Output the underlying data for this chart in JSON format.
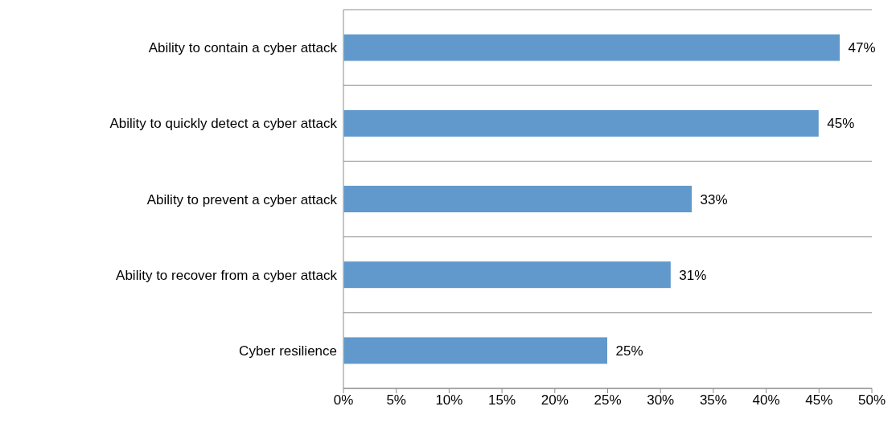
{
  "chart_data": {
    "type": "bar",
    "orientation": "horizontal",
    "categories": [
      "Ability to contain a cyber attack",
      "Ability to quickly detect a cyber attack",
      "Ability to prevent a cyber attack",
      "Ability to recover from a cyber attack",
      "Cyber resilience"
    ],
    "values": [
      47,
      45,
      33,
      31,
      25
    ],
    "value_labels": [
      "47%",
      "45%",
      "33%",
      "31%",
      "25%"
    ],
    "color": "#6199cc",
    "xlim": [
      0,
      50
    ],
    "xticks": [
      {
        "value": 0,
        "label": "0%"
      },
      {
        "value": 5,
        "label": "5%"
      },
      {
        "value": 10,
        "label": "10%"
      },
      {
        "value": 15,
        "label": "15%"
      },
      {
        "value": 20,
        "label": "20%"
      },
      {
        "value": 25,
        "label": "25%"
      },
      {
        "value": 30,
        "label": "30%"
      },
      {
        "value": 35,
        "label": "35%"
      },
      {
        "value": 40,
        "label": "40%"
      },
      {
        "value": 45,
        "label": "45%"
      },
      {
        "value": 50,
        "label": "50%"
      }
    ],
    "grid": "y"
  }
}
